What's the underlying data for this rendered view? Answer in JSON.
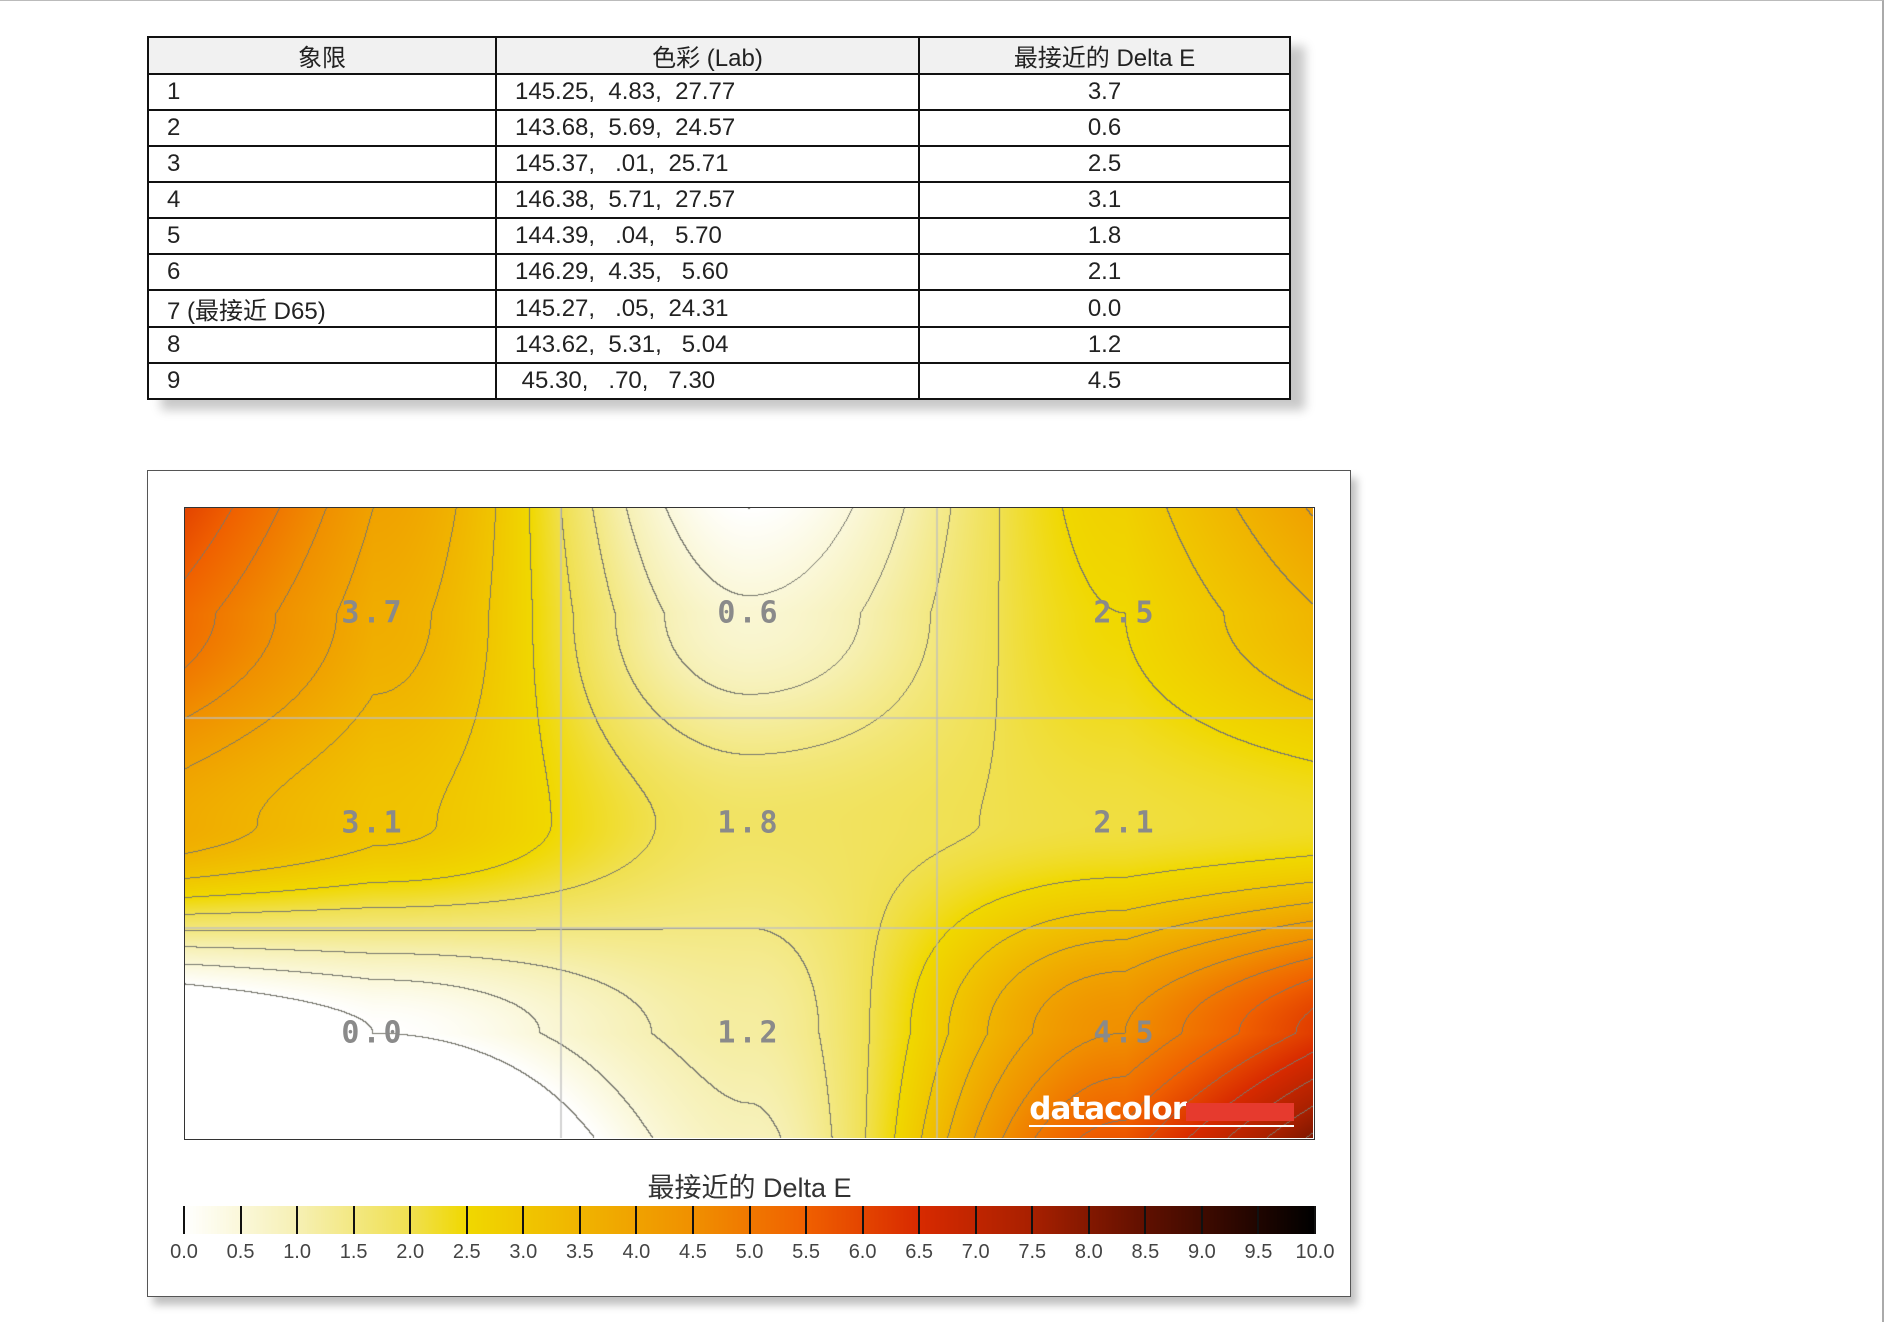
{
  "table": {
    "headers": [
      "象限",
      "色彩 (Lab)",
      "最接近的 Delta E"
    ],
    "rows": [
      [
        "1",
        "145.25,  4.83,  27.77",
        "3.7"
      ],
      [
        "2",
        "143.68,  5.69,  24.57",
        "0.6"
      ],
      [
        "3",
        "145.37,   .01,  25.71",
        "2.5"
      ],
      [
        "4",
        "146.38,  5.71,  27.57",
        "3.1"
      ],
      [
        "5",
        "144.39,   .04,   5.70",
        "1.8"
      ],
      [
        "6",
        "146.29,  4.35,   5.60",
        "2.1"
      ],
      [
        "7 (最接近 D65)",
        "145.27,   .05,  24.31",
        "0.0"
      ],
      [
        "8",
        "143.62,  5.31,   5.04",
        "1.2"
      ],
      [
        "9",
        " 45.30,   .70,   7.30",
        "4.5"
      ]
    ]
  },
  "chart_data": {
    "type": "heatmap",
    "grid_rows": 3,
    "grid_cols": 3,
    "values": [
      [
        3.7,
        0.6,
        2.5
      ],
      [
        3.1,
        1.8,
        2.1
      ],
      [
        0.0,
        1.2,
        4.5
      ]
    ],
    "cell_labels": [
      [
        "3.7",
        "0.6",
        "2.5"
      ],
      [
        "3.1",
        "1.8",
        "2.1"
      ],
      [
        "0.0",
        "1.2",
        "4.5"
      ]
    ],
    "contours": true,
    "contour_step": 0.5,
    "grid": true,
    "colorbar": {
      "title": "最接近的 Delta E",
      "range": [
        0,
        10
      ],
      "ticks": [
        "0.0",
        "0.5",
        "1.0",
        "1.5",
        "2.0",
        "2.5",
        "3.0",
        "3.5",
        "4.0",
        "4.5",
        "5.0",
        "5.5",
        "6.0",
        "6.5",
        "7.0",
        "7.5",
        "8.0",
        "8.5",
        "9.0",
        "9.5",
        "10.0"
      ],
      "colors": {
        "0": "#ffffff",
        "1": "#f6f0b4",
        "2": "#f0e050",
        "2.5": "#f0d800",
        "3.5": "#f0b400",
        "4.5": "#f09000",
        "5.5": "#f06000",
        "6.5": "#d82a00",
        "7.5": "#a82000",
        "8.5": "#601000",
        "10": "#000000"
      },
      "placement": "bottom"
    },
    "logo": "datacolor"
  }
}
